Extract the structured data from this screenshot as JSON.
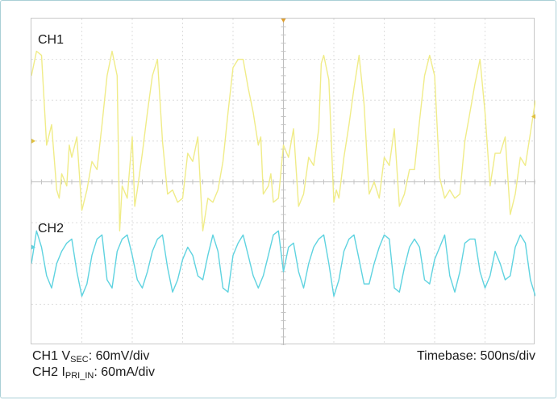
{
  "chart_data": {
    "type": "line",
    "grid": true,
    "divisions": {
      "x": 10,
      "y": 8
    },
    "series": [
      {
        "name": "CH1",
        "color": "#f0ec88",
        "x": [
          0,
          0.1,
          0.2,
          0.3,
          0.4,
          0.5,
          0.55,
          0.6,
          0.7,
          0.75,
          0.8,
          0.9,
          1.0,
          1.1,
          1.2,
          1.3,
          1.4,
          1.5,
          1.6,
          1.7,
          1.75,
          1.8,
          1.9,
          2.0,
          2.05,
          2.1,
          2.2,
          2.3,
          2.4,
          2.5,
          2.6,
          2.7,
          2.8,
          2.9,
          3.0,
          3.1,
          3.2,
          3.3,
          3.4,
          3.5,
          3.6,
          3.7,
          3.8,
          3.9,
          4.0,
          4.1,
          4.2,
          4.3,
          4.4,
          4.5,
          4.55,
          4.6,
          4.7,
          4.75,
          4.8,
          4.9,
          5.0,
          5.1,
          5.2,
          5.3,
          5.4,
          5.5,
          5.6,
          5.7,
          5.75,
          5.8,
          5.9,
          6.0,
          6.05,
          6.1,
          6.2,
          6.3,
          6.4,
          6.5,
          6.6,
          6.7,
          6.8,
          6.9,
          7.0,
          7.1,
          7.2,
          7.3,
          7.4,
          7.5,
          7.6,
          7.7,
          7.8,
          7.9,
          8.0,
          8.1,
          8.2,
          8.3,
          8.4,
          8.5,
          8.6,
          8.7,
          8.8,
          8.9,
          9.0,
          9.1,
          9.2,
          9.3,
          9.4,
          9.5,
          9.6,
          9.7,
          9.8,
          9.9,
          10.0
        ],
        "y": [
          2.6,
          3.2,
          3.1,
          0.9,
          1.4,
          -0.2,
          -0.4,
          0.2,
          -0.1,
          0.9,
          0.6,
          1.1,
          -0.7,
          -0.2,
          0.5,
          0.3,
          1.4,
          2.6,
          3.2,
          2.6,
          -1.2,
          -0.1,
          -0.4,
          1.1,
          -0.6,
          -0.2,
          0.7,
          1.7,
          2.6,
          3.0,
          1.0,
          -0.3,
          -0.2,
          -0.5,
          -0.4,
          0.7,
          0.5,
          1.1,
          -1.2,
          -0.4,
          -0.5,
          -0.2,
          0.5,
          1.7,
          2.8,
          3.0,
          3.0,
          2.3,
          1.7,
          0.9,
          1.1,
          -0.3,
          -0.1,
          0.2,
          -0.5,
          -0.4,
          0.9,
          0.6,
          1.3,
          -0.6,
          -0.3,
          0.6,
          0.4,
          1.3,
          2.9,
          3.1,
          2.5,
          -0.5,
          -0.2,
          -0.4,
          0.6,
          1.4,
          2.3,
          3.1,
          1.9,
          -0.3,
          0.0,
          -0.4,
          0.6,
          0.4,
          1.3,
          -0.6,
          -0.3,
          0.3,
          0.3,
          1.5,
          2.6,
          3.1,
          2.6,
          0.1,
          -0.4,
          -0.2,
          -0.4,
          -0.3,
          1.0,
          1.7,
          2.4,
          3.0,
          1.7,
          -0.1,
          0.7,
          0.7,
          1.1,
          -0.8,
          -0.3,
          0.6,
          0.4,
          1.2,
          2.0
        ]
      },
      {
        "name": "CH2",
        "color": "#5fd3e0",
        "x": [
          0,
          0.1,
          0.2,
          0.3,
          0.4,
          0.5,
          0.6,
          0.7,
          0.8,
          0.9,
          1.0,
          1.1,
          1.2,
          1.3,
          1.4,
          1.5,
          1.6,
          1.7,
          1.8,
          1.9,
          2.0,
          2.1,
          2.2,
          2.3,
          2.4,
          2.5,
          2.6,
          2.7,
          2.8,
          2.9,
          3.0,
          3.1,
          3.2,
          3.3,
          3.4,
          3.5,
          3.6,
          3.7,
          3.8,
          3.9,
          4.0,
          4.1,
          4.2,
          4.3,
          4.4,
          4.5,
          4.6,
          4.7,
          4.8,
          4.9,
          5.0,
          5.1,
          5.2,
          5.3,
          5.4,
          5.5,
          5.6,
          5.7,
          5.8,
          5.9,
          6.0,
          6.1,
          6.2,
          6.3,
          6.4,
          6.5,
          6.6,
          6.7,
          6.8,
          6.9,
          7.0,
          7.1,
          7.2,
          7.3,
          7.4,
          7.5,
          7.6,
          7.7,
          7.8,
          7.9,
          8.0,
          8.1,
          8.2,
          8.3,
          8.4,
          8.5,
          8.6,
          8.7,
          8.8,
          8.9,
          9.0,
          9.1,
          9.2,
          9.3,
          9.4,
          9.5,
          9.6,
          9.7,
          9.8,
          9.9,
          10.0
        ],
        "y": [
          -2.0,
          -1.2,
          -1.6,
          -2.3,
          -2.6,
          -2.0,
          -1.7,
          -1.5,
          -1.4,
          -2.2,
          -2.8,
          -2.5,
          -1.8,
          -1.4,
          -1.3,
          -2.4,
          -2.6,
          -1.7,
          -1.4,
          -1.3,
          -1.8,
          -2.4,
          -2.6,
          -2.2,
          -1.7,
          -1.4,
          -1.3,
          -2.1,
          -2.7,
          -2.4,
          -1.9,
          -1.6,
          -1.8,
          -2.3,
          -2.4,
          -1.8,
          -1.3,
          -1.7,
          -2.6,
          -2.7,
          -1.8,
          -1.5,
          -1.3,
          -1.8,
          -2.3,
          -2.6,
          -2.3,
          -1.8,
          -1.3,
          -1.2,
          -2.2,
          -1.6,
          -1.5,
          -2.2,
          -2.6,
          -2.0,
          -1.6,
          -1.4,
          -1.3,
          -2.0,
          -2.8,
          -2.4,
          -1.7,
          -1.4,
          -1.3,
          -1.9,
          -2.5,
          -2.5,
          -2.0,
          -1.6,
          -1.3,
          -1.4,
          -2.6,
          -2.7,
          -2.1,
          -1.6,
          -1.4,
          -1.6,
          -2.4,
          -2.5,
          -1.9,
          -1.6,
          -1.3,
          -2.3,
          -2.7,
          -2.2,
          -1.5,
          -1.4,
          -1.4,
          -2.2,
          -2.6,
          -2.3,
          -1.7,
          -2.0,
          -2.4,
          -2.3,
          -1.6,
          -1.3,
          -1.5,
          -2.4,
          -2.8
        ]
      }
    ]
  },
  "labels": {
    "ch1": "CH1",
    "ch2": "CH2"
  },
  "caption": {
    "line1_prefix": "CH1 V",
    "line1_sub": "SEC",
    "line1_suffix": ": 60mV/div",
    "line2_prefix": "CH2 I",
    "line2_sub": "PRI_IN",
    "line2_suffix": ": 60mA/div",
    "timebase": "Timebase: 500ns/div"
  }
}
